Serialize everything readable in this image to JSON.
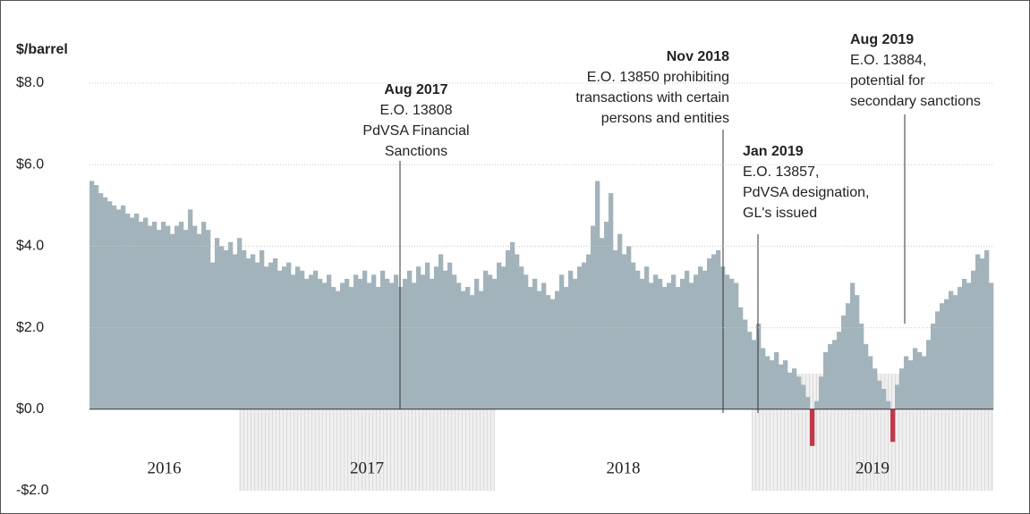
{
  "chart_data": {
    "type": "bar",
    "axis_label": "$/barrel",
    "ylim": [
      -2,
      8
    ],
    "yticks": [
      {
        "value": -2,
        "label": "-$2.0"
      },
      {
        "value": 0,
        "label": "$0.0"
      },
      {
        "value": 2,
        "label": "$2.0"
      },
      {
        "value": 4,
        "label": "$4.0"
      },
      {
        "value": 6,
        "label": "$6.0"
      },
      {
        "value": 8,
        "label": "$8.0"
      }
    ],
    "grid": true,
    "color": "#a3b3bb",
    "negative_color": "#c0394b",
    "years": [
      "2016",
      "2017",
      "2018",
      "2019"
    ],
    "values": [
      5.6,
      5.5,
      5.3,
      5.2,
      5.1,
      5.0,
      4.9,
      5.0,
      4.8,
      4.7,
      4.8,
      4.6,
      4.7,
      4.5,
      4.6,
      4.4,
      4.6,
      4.5,
      4.3,
      4.5,
      4.6,
      4.4,
      4.9,
      4.5,
      4.3,
      4.6,
      4.4,
      3.6,
      4.2,
      4.0,
      3.9,
      4.1,
      3.8,
      4.2,
      3.9,
      3.7,
      3.8,
      3.6,
      3.9,
      3.5,
      3.6,
      3.7,
      3.4,
      3.5,
      3.6,
      3.3,
      3.5,
      3.4,
      3.2,
      3.3,
      3.4,
      3.2,
      3.1,
      3.3,
      3.0,
      2.9,
      3.1,
      3.2,
      3.0,
      3.3,
      3.2,
      3.4,
      3.1,
      3.3,
      3.0,
      3.4,
      3.2,
      3.1,
      3.3,
      3.0,
      3.2,
      3.4,
      3.1,
      3.5,
      3.3,
      3.6,
      3.2,
      3.5,
      3.8,
      3.4,
      3.6,
      3.3,
      3.1,
      2.9,
      3.0,
      2.8,
      3.2,
      2.9,
      3.4,
      3.3,
      3.2,
      3.6,
      3.5,
      3.9,
      4.1,
      3.8,
      3.5,
      3.3,
      3.0,
      3.2,
      2.9,
      3.1,
      2.8,
      2.7,
      2.9,
      3.3,
      3.0,
      3.4,
      3.2,
      3.5,
      3.6,
      3.8,
      4.5,
      5.6,
      4.2,
      4.6,
      5.3,
      3.9,
      4.3,
      3.8,
      4.0,
      3.6,
      3.4,
      3.2,
      3.5,
      3.1,
      3.3,
      3.2,
      3.0,
      3.1,
      3.3,
      3.0,
      3.2,
      3.4,
      3.1,
      3.3,
      3.5,
      3.4,
      3.7,
      3.8,
      3.9,
      3.5,
      3.3,
      3.2,
      3.1,
      2.5,
      2.2,
      1.9,
      1.7,
      2.1,
      1.5,
      1.3,
      1.2,
      1.4,
      1.1,
      1.2,
      0.9,
      1.0,
      0.8,
      0.6,
      0.3,
      -0.9,
      0.2,
      0.8,
      1.4,
      1.6,
      1.7,
      1.9,
      2.3,
      2.6,
      3.1,
      2.8,
      2.1,
      1.6,
      1.3,
      1.0,
      0.7,
      0.5,
      0.2,
      -0.8,
      0.6,
      1.0,
      1.3,
      1.2,
      1.5,
      1.4,
      1.3,
      1.7,
      2.1,
      2.4,
      2.6,
      2.7,
      2.9,
      2.8,
      3.0,
      3.2,
      3.1,
      3.4,
      3.8,
      3.7,
      3.9,
      3.1
    ],
    "annotations": [
      {
        "date": "Aug 2017",
        "lines": [
          "E.O. 13808",
          "PdVSA Financial",
          "Sanctions"
        ]
      },
      {
        "date": "Nov 2018",
        "lines": [
          "E.O. 13850 prohibiting",
          "transactions with certain",
          "persons and entities"
        ]
      },
      {
        "date": "Jan 2019",
        "lines": [
          "E.O. 13857,",
          "PdVSA designation,",
          "GL's issued"
        ]
      },
      {
        "date": "Aug 2019",
        "lines": [
          "E.O. 13884,",
          "potential for",
          "secondary sanctions"
        ]
      }
    ]
  }
}
